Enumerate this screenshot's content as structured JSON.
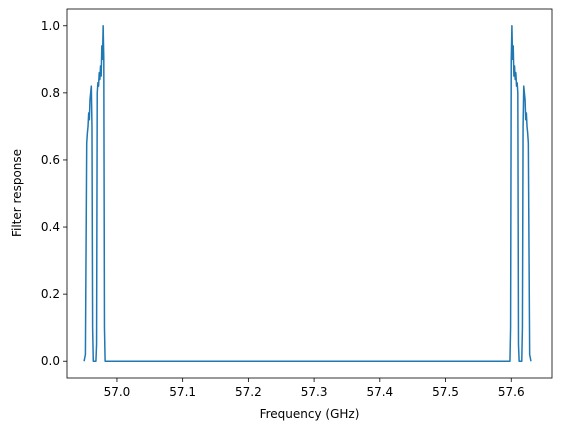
{
  "chart_data": {
    "type": "line",
    "xlabel": "Frequency (GHz)",
    "ylabel": "Filter response",
    "x": [
      56.95,
      56.952,
      56.954,
      56.955,
      56.956,
      56.957,
      56.958,
      56.959,
      56.96,
      56.961,
      56.962,
      56.963,
      56.964,
      56.966,
      56.968,
      56.969,
      56.97,
      56.971,
      56.972,
      56.973,
      56.974,
      56.975,
      56.976,
      56.977,
      56.978,
      56.979,
      56.98,
      56.981,
      56.982,
      57.598,
      57.599,
      57.6,
      57.601,
      57.602,
      57.603,
      57.604,
      57.605,
      57.606,
      57.607,
      57.608,
      57.609,
      57.61,
      57.611,
      57.612,
      57.614,
      57.616,
      57.617,
      57.618,
      57.619,
      57.62,
      57.621,
      57.622,
      57.623,
      57.624,
      57.625,
      57.626,
      57.628,
      57.63
    ],
    "series": [
      {
        "color": "#1f77b4",
        "values": [
          0,
          0.02,
          0.65,
          0.68,
          0.7,
          0.74,
          0.72,
          0.78,
          0.8,
          0.82,
          0.7,
          0.1,
          0,
          0,
          0,
          0.05,
          0.8,
          0.83,
          0.82,
          0.86,
          0.84,
          0.88,
          0.85,
          0.94,
          0.9,
          1.0,
          0.9,
          0.1,
          0,
          0,
          0.1,
          0.9,
          1.0,
          0.9,
          0.94,
          0.85,
          0.88,
          0.84,
          0.86,
          0.82,
          0.83,
          0.8,
          0.05,
          0,
          0,
          0,
          0.1,
          0.7,
          0.82,
          0.8,
          0.78,
          0.72,
          0.74,
          0.7,
          0.68,
          0.65,
          0.02,
          0
        ]
      }
    ],
    "xlim": [
      56.924,
      57.662
    ],
    "xticks": [
      {
        "value": 57,
        "label": "57.0"
      },
      57.1,
      57.2,
      57.3,
      57.4,
      57.5,
      57.6
    ],
    "ylim": [
      -0.05,
      1.05
    ],
    "yticks": [
      {
        "value": 0,
        "label": "0.0"
      },
      0.2,
      0.4,
      0.6,
      0.8,
      {
        "value": 1,
        "label": "1.0"
      }
    ]
  }
}
